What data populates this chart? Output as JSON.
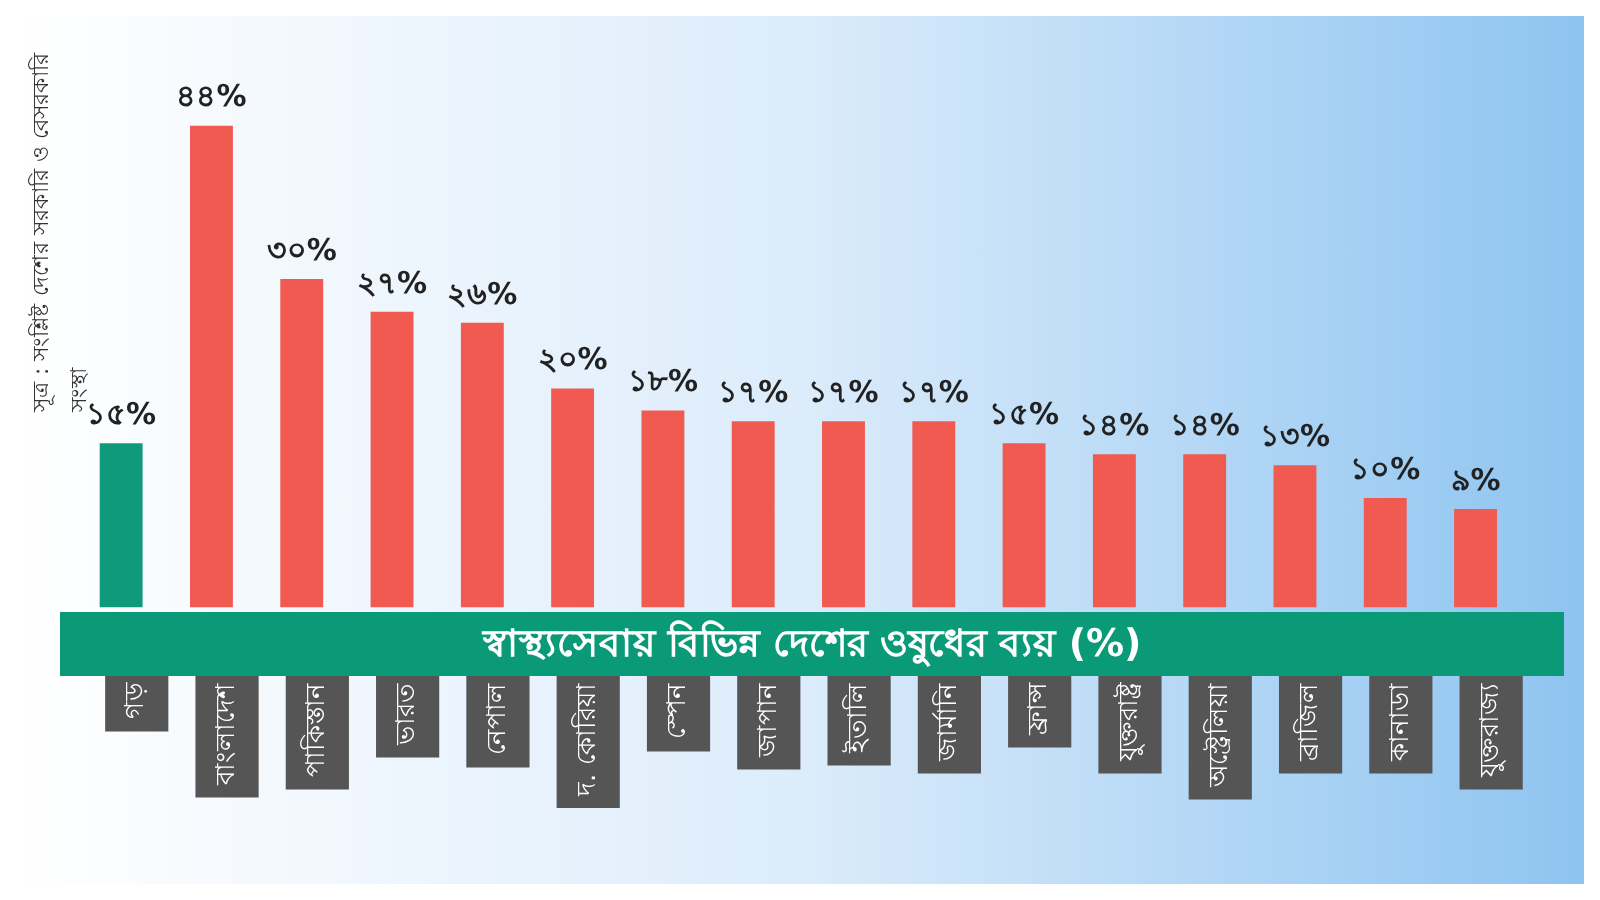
{
  "chart_data": {
    "type": "bar",
    "title": "স্বাস্থ্যসেবায় বিভিন্ন দেশের ওষুধের ব্যয় (%)",
    "categories": [
      "গড়",
      "বাংলাদেশ",
      "পাকিস্তান",
      "ভারত",
      "নেপাল",
      "দ. কোরিয়া",
      "স্পেন",
      "জাপান",
      "ইতালি",
      "জার্মানি",
      "ফ্রান্স",
      "যুক্তরাষ্ট্র",
      "অস্ট্রেলিয়া",
      "ব্রাজিল",
      "কানাডা",
      "যুক্তরাজ্য"
    ],
    "values": [
      15,
      44,
      30,
      27,
      26,
      20,
      18,
      17,
      17,
      17,
      15,
      14,
      14,
      13,
      10,
      9
    ],
    "value_labels": [
      "১৫%",
      "৪৪%",
      "৩০%",
      "২৭%",
      "২৬%",
      "২০%",
      "১৮%",
      "১৭%",
      "১৭%",
      "১৭%",
      "১৫%",
      "১৪%",
      "১৪%",
      "১৩%",
      "১০%",
      "৯%"
    ],
    "colors": [
      "#109a7b",
      "#f05a50",
      "#f05a50",
      "#f05a50",
      "#f05a50",
      "#f05a50",
      "#f05a50",
      "#f05a50",
      "#f05a50",
      "#f05a50",
      "#f05a50",
      "#f05a50",
      "#f05a50",
      "#f05a50",
      "#f05a50",
      "#f05a50"
    ],
    "annotations": [
      "সূত্র : সংশ্লিষ্ট দেশের সরকারি ও বেসরকারি সংস্থা"
    ],
    "legend": false,
    "grid": false
  }
}
